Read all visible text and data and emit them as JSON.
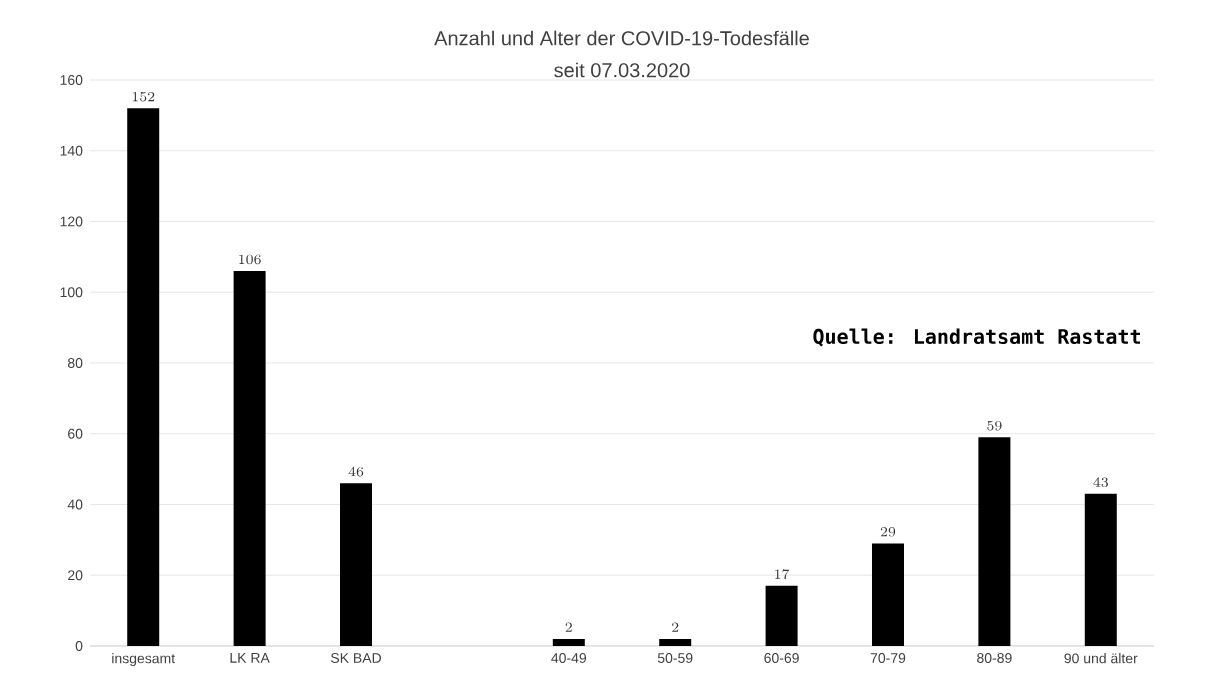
{
  "chart_data": {
    "type": "bar",
    "title": "Anzahl und Alter der COVID-19-Todesfälle",
    "subtitle": "seit 07.03.2020",
    "categories": [
      "insgesamt",
      "LK RA",
      "SK BAD",
      null,
      "40-49",
      "50-59",
      "60-69",
      "70-79",
      "80-89",
      "90 und älter"
    ],
    "values": [
      152,
      106,
      46,
      null,
      2,
      2,
      17,
      29,
      59,
      43
    ],
    "color": "#000000",
    "ylim": [
      0,
      160
    ],
    "yticks": [
      0,
      20,
      40,
      60,
      80,
      100,
      120,
      140,
      160
    ],
    "grid": "y",
    "data_labels": true,
    "annotations": [
      "Quelle: Landratsamt Rastatt"
    ]
  }
}
